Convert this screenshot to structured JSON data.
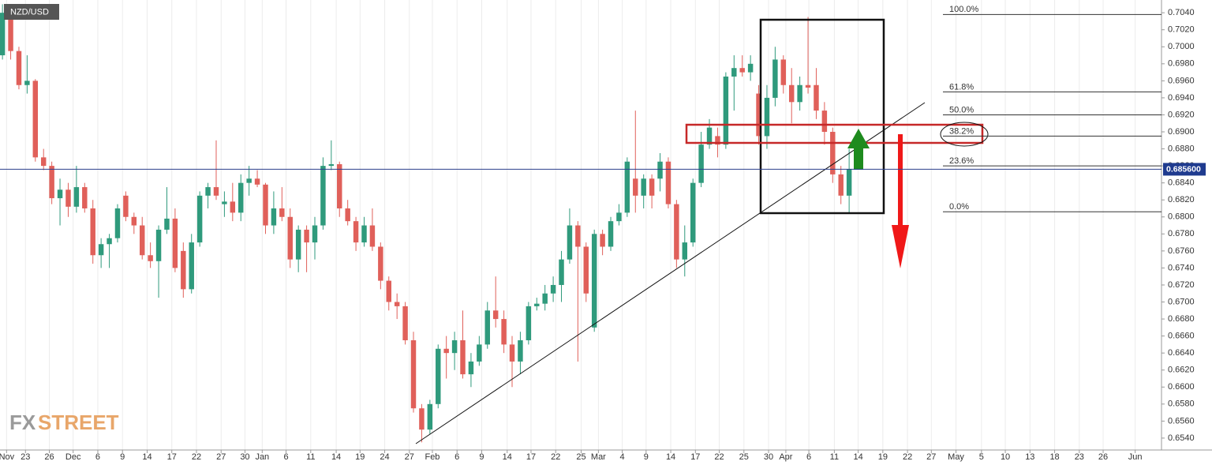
{
  "chart_data": {
    "type": "candlestick",
    "symbol": "NZD/USD",
    "logo": [
      "FX",
      "STREET"
    ],
    "up_color": "#2f9a7c",
    "down_color": "#e0605a",
    "x": [
      0,
      1,
      2,
      3,
      4,
      5,
      6,
      7,
      8,
      9,
      10,
      11,
      12,
      13,
      14,
      15,
      16,
      17,
      18,
      19,
      20,
      21,
      22,
      23,
      24,
      25,
      26,
      27,
      28,
      29,
      30,
      31,
      32,
      33,
      34,
      35,
      36,
      37,
      38,
      39,
      40,
      41,
      42,
      43,
      44,
      45,
      46,
      47,
      48,
      49,
      50,
      51,
      52,
      53,
      54,
      55,
      56,
      57,
      58,
      59,
      60,
      61,
      62,
      63,
      64,
      65,
      66,
      67,
      68,
      69,
      70,
      71,
      72,
      73,
      74,
      75,
      76,
      77,
      78,
      79,
      80,
      81,
      82,
      83,
      84,
      85,
      86,
      87,
      88,
      89,
      90,
      91,
      92,
      93,
      94,
      95,
      96,
      97,
      98,
      99,
      100,
      101,
      102,
      103
    ],
    "open": [
      0.699,
      0.704,
      0.6995,
      0.6955,
      0.696,
      0.687,
      0.686,
      0.6822,
      0.6832,
      0.6812,
      0.6835,
      0.681,
      0.6755,
      0.6768,
      0.6775,
      0.6825,
      0.68,
      0.679,
      0.6755,
      0.6748,
      0.6785,
      0.6798,
      0.676,
      0.6715,
      0.677,
      0.6825,
      0.6835,
      0.6815,
      0.6818,
      0.6805,
      0.684,
      0.6845,
      0.6838,
      0.679,
      0.681,
      0.68,
      0.675,
      0.6785,
      0.677,
      0.679,
      0.686,
      0.6862,
      0.681,
      0.6795,
      0.677,
      0.679,
      0.6765,
      0.6725,
      0.67,
      0.6695,
      0.6655,
      0.6575,
      0.655,
      0.658,
      0.6645,
      0.664,
      0.6655,
      0.6615,
      0.663,
      0.665,
      0.669,
      0.668,
      0.665,
      0.663,
      0.6655,
      0.6695,
      0.6698,
      0.671,
      0.672,
      0.675,
      0.679,
      0.6765,
      0.667,
      0.678,
      0.6765,
      0.6795,
      0.6805,
      0.6845,
      0.6825,
      0.6845,
      0.6845,
      0.6865,
      0.6815,
      0.675,
      0.677,
      0.684,
      0.6885,
      0.6895,
      0.6885,
      0.6965,
      0.6975,
      0.697,
      0.6945,
      0.6895,
      0.694,
      0.6985,
      0.6955,
      0.6935,
      0.6955,
      0.6955,
      0.6925,
      0.69,
      0.685,
      0.6825
    ],
    "high": [
      0.705,
      0.7045,
      0.7,
      0.699,
      0.6962,
      0.688,
      0.6865,
      0.6845,
      0.684,
      0.686,
      0.684,
      0.682,
      0.6775,
      0.678,
      0.6815,
      0.683,
      0.6805,
      0.68,
      0.677,
      0.679,
      0.6835,
      0.681,
      0.677,
      0.678,
      0.683,
      0.684,
      0.689,
      0.683,
      0.684,
      0.685,
      0.686,
      0.6855,
      0.684,
      0.683,
      0.6835,
      0.681,
      0.679,
      0.679,
      0.68,
      0.687,
      0.689,
      0.6865,
      0.682,
      0.68,
      0.68,
      0.681,
      0.677,
      0.673,
      0.671,
      0.67,
      0.6665,
      0.658,
      0.6585,
      0.665,
      0.666,
      0.6665,
      0.669,
      0.664,
      0.666,
      0.67,
      0.673,
      0.669,
      0.666,
      0.6665,
      0.67,
      0.6705,
      0.672,
      0.673,
      0.676,
      0.681,
      0.6795,
      0.677,
      0.6785,
      0.6785,
      0.68,
      0.6815,
      0.687,
      0.6925,
      0.685,
      0.685,
      0.6875,
      0.687,
      0.682,
      0.679,
      0.6845,
      0.69,
      0.6915,
      0.6905,
      0.697,
      0.699,
      0.699,
      0.699,
      0.6955,
      0.6955,
      0.7,
      0.699,
      0.6975,
      0.6965,
      0.7035,
      0.6975,
      0.6935,
      0.6905,
      0.686,
      0.688
    ],
    "low": [
      0.6985,
      0.6985,
      0.695,
      0.6945,
      0.6865,
      0.6855,
      0.6815,
      0.679,
      0.68,
      0.6805,
      0.6805,
      0.6745,
      0.674,
      0.674,
      0.677,
      0.6795,
      0.678,
      0.675,
      0.674,
      0.6705,
      0.678,
      0.6735,
      0.6705,
      0.671,
      0.6765,
      0.681,
      0.682,
      0.68,
      0.6795,
      0.6795,
      0.6825,
      0.6835,
      0.678,
      0.678,
      0.6795,
      0.674,
      0.6735,
      0.6735,
      0.675,
      0.6785,
      0.6855,
      0.68,
      0.679,
      0.676,
      0.6765,
      0.676,
      0.6715,
      0.669,
      0.668,
      0.665,
      0.657,
      0.6535,
      0.6545,
      0.6575,
      0.661,
      0.662,
      0.661,
      0.66,
      0.6625,
      0.6645,
      0.667,
      0.664,
      0.66,
      0.6615,
      0.665,
      0.669,
      0.669,
      0.67,
      0.67,
      0.6745,
      0.663,
      0.67,
      0.6665,
      0.6755,
      0.676,
      0.679,
      0.68,
      0.6805,
      0.681,
      0.681,
      0.683,
      0.681,
      0.674,
      0.673,
      0.6765,
      0.6835,
      0.688,
      0.687,
      0.688,
      0.6925,
      0.6965,
      0.696,
      0.6885,
      0.688,
      0.693,
      0.6945,
      0.691,
      0.6925,
      0.6945,
      0.6915,
      0.6885,
      0.684,
      0.6815,
      0.6805
    ],
    "close": [
      0.704,
      0.6995,
      0.6955,
      0.696,
      0.687,
      0.686,
      0.6822,
      0.6832,
      0.6812,
      0.6835,
      0.681,
      0.6755,
      0.6768,
      0.6775,
      0.681,
      0.68,
      0.679,
      0.6755,
      0.6748,
      0.6785,
      0.6798,
      0.674,
      0.6715,
      0.677,
      0.6825,
      0.6835,
      0.6825,
      0.6818,
      0.6805,
      0.684,
      0.6845,
      0.6838,
      0.679,
      0.681,
      0.68,
      0.675,
      0.6785,
      0.677,
      0.679,
      0.686,
      0.6862,
      0.681,
      0.6795,
      0.677,
      0.679,
      0.6765,
      0.6725,
      0.67,
      0.6695,
      0.6655,
      0.6575,
      0.655,
      0.658,
      0.6645,
      0.664,
      0.6655,
      0.6615,
      0.663,
      0.665,
      0.669,
      0.668,
      0.665,
      0.663,
      0.6655,
      0.6695,
      0.6698,
      0.671,
      0.672,
      0.675,
      0.679,
      0.6765,
      0.671,
      0.678,
      0.6765,
      0.6795,
      0.6805,
      0.6865,
      0.6825,
      0.6845,
      0.6825,
      0.6865,
      0.6815,
      0.675,
      0.677,
      0.684,
      0.6885,
      0.6905,
      0.6885,
      0.6965,
      0.6975,
      0.697,
      0.698,
      0.6895,
      0.694,
      0.6985,
      0.6955,
      0.6935,
      0.6955,
      0.6952,
      0.6925,
      0.69,
      0.685,
      0.6825,
      0.6856
    ],
    "xlim": [
      -0.3,
      141
    ],
    "xticks": [
      {
        "value": 0.5,
        "label": "Nov"
      },
      {
        "value": 2.8,
        "label": "23"
      },
      {
        "value": 5.7,
        "label": "26"
      },
      {
        "value": 8.6,
        "label": "Dec"
      },
      {
        "value": 11.6,
        "label": "6"
      },
      {
        "value": 14.6,
        "label": "9"
      },
      {
        "value": 17.6,
        "label": "14"
      },
      {
        "value": 20.6,
        "label": "17"
      },
      {
        "value": 23.6,
        "label": "22"
      },
      {
        "value": 26.6,
        "label": "27"
      },
      {
        "value": 29.5,
        "label": "30"
      },
      {
        "value": 31.6,
        "label": "Jan"
      },
      {
        "value": 34.5,
        "label": "6"
      },
      {
        "value": 37.5,
        "label": "11"
      },
      {
        "value": 40.6,
        "label": "14"
      },
      {
        "value": 43.5,
        "label": "19"
      },
      {
        "value": 46.5,
        "label": "24"
      },
      {
        "value": 49.5,
        "label": "27"
      },
      {
        "value": 52.3,
        "label": "Feb"
      },
      {
        "value": 55.3,
        "label": "6"
      },
      {
        "value": 58.3,
        "label": "9"
      },
      {
        "value": 61.4,
        "label": "14"
      },
      {
        "value": 64.3,
        "label": "17"
      },
      {
        "value": 67.3,
        "label": "22"
      },
      {
        "value": 70.4,
        "label": "25"
      },
      {
        "value": 72.5,
        "label": "Mar"
      },
      {
        "value": 75.4,
        "label": "4"
      },
      {
        "value": 78.3,
        "label": "9"
      },
      {
        "value": 81.3,
        "label": "14"
      },
      {
        "value": 84.3,
        "label": "17"
      },
      {
        "value": 87.2,
        "label": "22"
      },
      {
        "value": 90.2,
        "label": "25"
      },
      {
        "value": 93.2,
        "label": "30"
      },
      {
        "value": 95.3,
        "label": "Apr"
      },
      {
        "value": 98.1,
        "label": "6"
      },
      {
        "value": 101.2,
        "label": "11"
      },
      {
        "value": 104.1,
        "label": "14"
      },
      {
        "value": 107.1,
        "label": "19"
      },
      {
        "value": 110.1,
        "label": "22"
      },
      {
        "value": 113.0,
        "label": "27"
      },
      {
        "value": 116.0,
        "label": "May"
      },
      {
        "value": 119.1,
        "label": "5"
      },
      {
        "value": 122.0,
        "label": "10"
      },
      {
        "value": 125.0,
        "label": "13"
      },
      {
        "value": 128.0,
        "label": "18"
      },
      {
        "value": 131.0,
        "label": "23"
      },
      {
        "value": 133.9,
        "label": "26"
      },
      {
        "value": 137.8,
        "label": "Jun"
      }
    ],
    "ylim": [
      0.6526,
      0.7055
    ],
    "yticks": [
      {
        "value": 0.654,
        "label": "0.6540"
      },
      {
        "value": 0.656,
        "label": "0.6560"
      },
      {
        "value": 0.658,
        "label": "0.6580"
      },
      {
        "value": 0.66,
        "label": "0.6600"
      },
      {
        "value": 0.662,
        "label": "0.6620"
      },
      {
        "value": 0.664,
        "label": "0.6640"
      },
      {
        "value": 0.666,
        "label": "0.6660"
      },
      {
        "value": 0.668,
        "label": "0.6680"
      },
      {
        "value": 0.67,
        "label": "0.6700"
      },
      {
        "value": 0.672,
        "label": "0.6720"
      },
      {
        "value": 0.674,
        "label": "0.6740"
      },
      {
        "value": 0.676,
        "label": "0.6760"
      },
      {
        "value": 0.678,
        "label": "0.6780"
      },
      {
        "value": 0.68,
        "label": "0.6800"
      },
      {
        "value": 0.682,
        "label": "0.6820"
      },
      {
        "value": 0.684,
        "label": "0.6840"
      },
      {
        "value": 0.686,
        "label": "0.6860"
      },
      {
        "value": 0.688,
        "label": "0.6880"
      },
      {
        "value": 0.69,
        "label": "0.6900"
      },
      {
        "value": 0.692,
        "label": "0.6920"
      },
      {
        "value": 0.694,
        "label": "0.6940"
      },
      {
        "value": 0.696,
        "label": "0.6960"
      },
      {
        "value": 0.698,
        "label": "0.6980"
      },
      {
        "value": 0.7,
        "label": "0.7000"
      },
      {
        "value": 0.702,
        "label": "0.7020"
      },
      {
        "value": 0.704,
        "label": "0.7040"
      }
    ],
    "last_price": {
      "value": 0.6856,
      "label": "0.685600"
    },
    "fib_levels": [
      {
        "value": 0.7038,
        "label": "100.0%"
      },
      {
        "value": 0.6947,
        "label": "61.8%"
      },
      {
        "value": 0.692,
        "label": "50.0%"
      },
      {
        "value": 0.6895,
        "label": "38.2%"
      },
      {
        "value": 0.686,
        "label": "23.6%"
      },
      {
        "value": 0.6806,
        "label": "0.0%"
      }
    ],
    "grid": true
  }
}
